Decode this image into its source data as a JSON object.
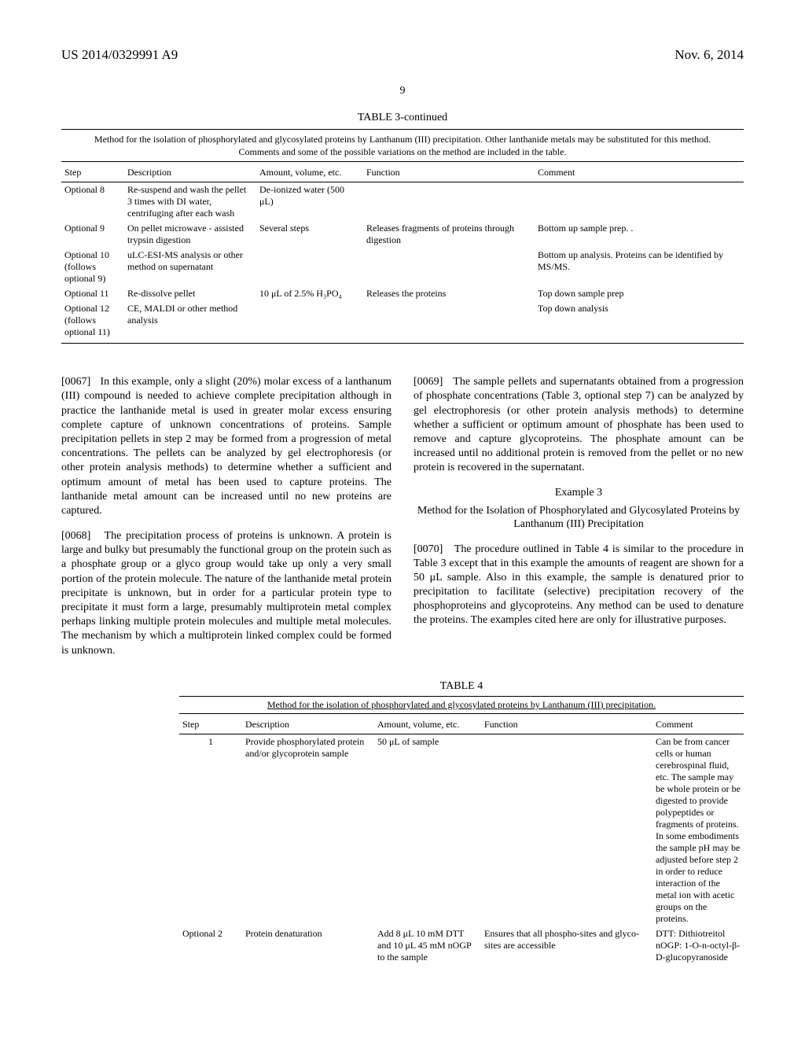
{
  "header": {
    "pub_no": "US 2014/0329991 A9",
    "date": "Nov. 6, 2014",
    "page": "9"
  },
  "table3": {
    "title": "TABLE 3-continued",
    "caption": "Method for the isolation of phosphorylated and glycosylated proteins by Lanthanum (III) precipitation. Other lanthanide metals may be substituted for this method. Comments and some of the possible variations on the method are included in the table.",
    "columns": [
      "Step",
      "Description",
      "Amount, volume, etc.",
      "Function",
      "Comment"
    ],
    "rows": [
      {
        "step": "Optional 8",
        "desc": "Re-suspend and wash the pellet 3 times with DI water, centrifuging after each wash",
        "amt": "De-ionized water (500 μL)",
        "func": "",
        "cmt": ""
      },
      {
        "step": "Optional 9",
        "desc": "On pellet microwave - assisted trypsin digestion",
        "amt": "Several steps",
        "func": "Releases fragments of proteins through digestion",
        "cmt": "Bottom up sample prep. ."
      },
      {
        "step": "Optional 10 (follows optional 9)",
        "desc": "uLC-ESI-MS analysis or other method on supernatant",
        "amt": "",
        "func": "",
        "cmt": "Bottom up analysis. Proteins can be identified by MS/MS."
      },
      {
        "step": "Optional 11",
        "desc": "Re-dissolve pellet",
        "amt": "10 μL of 2.5% H₃PO₄",
        "func": "Releases the proteins",
        "cmt": "Top down sample prep"
      },
      {
        "step": "Optional 12 (follows optional 11)",
        "desc": "CE, MALDI or other method analysis",
        "amt": "",
        "func": "",
        "cmt": "Top down analysis"
      }
    ]
  },
  "body": {
    "p67_label": "[0067]",
    "p67": "In this example, only a slight (20%) molar excess of a lanthanum (III) compound is needed to achieve complete precipitation although in practice the lanthanide metal is used in greater molar excess ensuring complete capture of unknown concentrations of proteins. Sample precipitation pellets in step 2 may be formed from a progression of metal concentrations. The pellets can be analyzed by gel electro­phoresis (or other protein analysis methods) to determine whether a sufficient and optimum amount of metal has been used to capture proteins. The lanthanide metal amount can be increased until no new proteins are captured.",
    "p68_label": "[0068]",
    "p68": "The precipitation process of proteins is unknown. A protein is large and bulky but presumably the functional group on the protein such as a phosphate group or a glyco group would take up only a very small portion of the protein molecule. The nature of the lanthanide metal protein precipi­tate is unknown, but in order for a particular protein type to precipitate it must form a large, presumably multiprotein metal complex perhaps linking multiple protein molecules and multiple metal molecules. The mechanism by which a multiprotein linked complex could be formed is unknown.",
    "p69_label": "[0069]",
    "p69": "The sample pellets and supernatants obtained from a progression of phosphate concentrations (Table 3, optional step 7) can be analyzed by gel electrophoresis (or other pro­tein analysis methods) to determine whether a sufficient or optimum amount of phosphate has been used to remove and capture glycoproteins. The phosphate amount can be increased until no additional protein is removed from the pellet or no new protein is recovered in the supernatant.",
    "ex3_head": "Example 3",
    "ex3_title": "Method for the Isolation of Phosphorylated and Glycosylated Proteins by Lanthanum (III) Precipitation",
    "p70_label": "[0070]",
    "p70": "The procedure outlined in Table 4 is similar to the procedure in Table 3 except that in this example the amounts of reagent are shown for a 50 μL sample. Also in this example, the sample is denatured prior to precipitation to facilitate (selective) precipitation recovery of the phosphoproteins and glycoproteins. Any method can be used to denature the pro­teins. The examples cited here are only for illustrative pur­poses."
  },
  "table4": {
    "title": "TABLE 4",
    "caption": "Method for the isolation of phosphorylated and glycosylated proteins by Lanthanum (III) precipitation.",
    "columns": [
      "Step",
      "Description",
      "Amount, volume, etc.",
      "Function",
      "Comment"
    ],
    "rows": [
      {
        "step": "1",
        "desc": "Provide phosphorylated protein and/or glycoprotein sample",
        "amt": "50 μL of sample",
        "func": "",
        "cmt": "Can be from cancer cells or human cerebrospinal fluid, etc. The sample may be whole protein or be digested to provide polypeptides or fragments of proteins. In some embodiments the sample pH may be adjusted before step 2 in order to reduce interaction of the metal ion with acetic groups on the proteins."
      },
      {
        "step": "Optional 2",
        "desc": "Protein denaturation",
        "amt": "Add 8 μL 10 mM DTT and 10 μL 45 mM nOGP to the sample",
        "func": "Ensures that all phospho-sites and glyco-sites are accessible",
        "cmt": "DTT: Dithiotreitol nOGP: 1-O-n-octyl-β-D-glucopyranoside"
      }
    ]
  }
}
